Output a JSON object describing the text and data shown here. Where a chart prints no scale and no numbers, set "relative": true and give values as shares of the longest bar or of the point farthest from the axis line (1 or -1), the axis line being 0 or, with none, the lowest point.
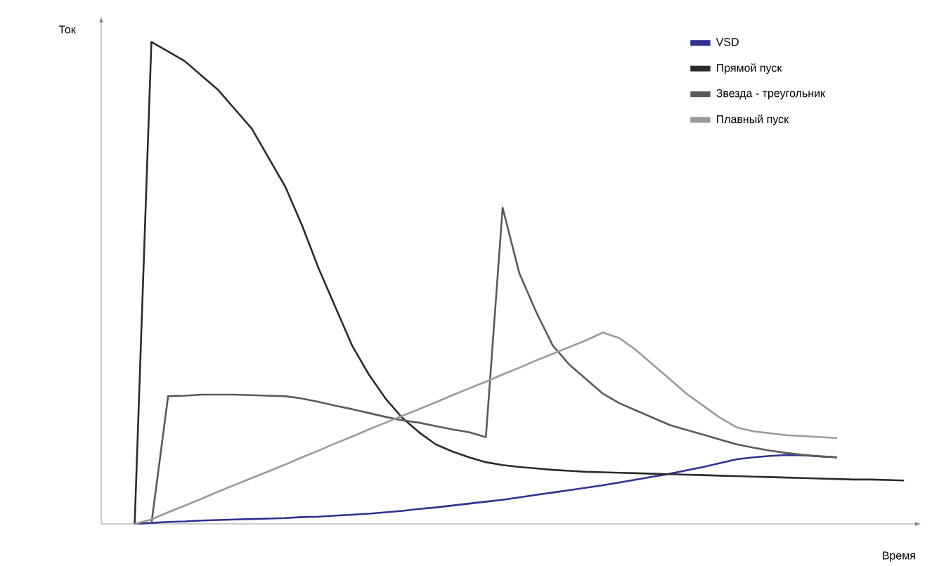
{
  "chart_data": {
    "type": "line",
    "relative": true,
    "xlabel": "Время",
    "ylabel": "Ток",
    "legend": "top right",
    "categories": [
      null,
      null,
      null,
      null,
      null,
      null,
      null,
      null,
      null,
      null,
      null,
      null,
      null,
      null,
      null,
      null,
      null,
      null,
      null,
      null,
      null,
      null,
      null,
      null,
      null,
      null,
      null,
      null,
      null,
      null,
      null,
      null,
      null,
      null,
      null,
      null,
      null,
      null,
      null,
      null,
      null,
      null,
      null,
      null,
      null,
      null,
      null,
      null,
      null,
      null
    ],
    "series": [
      {
        "name": "VSD",
        "color": "#2e3192",
        "values": [
          null,
          null,
          0,
          0.002,
          0.004,
          0.005,
          0.007,
          0.008,
          0.009,
          0.01,
          0.011,
          0.012,
          0.014,
          0.015,
          0.017,
          0.019,
          0.021,
          0.024,
          0.027,
          0.031,
          0.034,
          0.038,
          0.042,
          0.046,
          0.05,
          0.055,
          0.06,
          0.065,
          0.07,
          0.075,
          0.08,
          0.086,
          0.092,
          0.098,
          0.104,
          0.111,
          0.118,
          0.126,
          0.134,
          0.138,
          0.141,
          0.143,
          0.142,
          0.14,
          0.138,
          null,
          null,
          null,
          null,
          null
        ]
      },
      {
        "name": "Прямой пуск",
        "color": "#2b2b2b",
        "values": [
          null,
          null,
          0,
          1,
          0.98,
          0.96,
          0.93,
          0.9,
          0.86,
          0.82,
          0.76,
          0.7,
          0.62,
          0.53,
          0.45,
          0.37,
          0.31,
          0.26,
          0.22,
          0.19,
          0.165,
          0.15,
          0.138,
          0.128,
          0.122,
          0.118,
          0.115,
          0.112,
          0.11,
          0.108,
          0.107,
          0.106,
          0.105,
          0.104,
          0.103,
          0.102,
          0.101,
          0.1,
          0.099,
          0.098,
          0.097,
          0.096,
          0.095,
          0.094,
          0.093,
          0.092,
          0.092,
          0.091,
          0.09,
          null
        ]
      },
      {
        "name": "Звезда - треугольник",
        "color": "#5a5a5a",
        "values": [
          null,
          null,
          null,
          0,
          0.265,
          0.266,
          0.268,
          0.268,
          0.268,
          0.267,
          0.266,
          0.265,
          0.26,
          0.253,
          0.245,
          0.238,
          0.23,
          0.222,
          0.215,
          0.21,
          0.203,
          0.196,
          0.19,
          0.18,
          0.656,
          0.52,
          0.44,
          0.37,
          0.33,
          0.3,
          0.27,
          0.25,
          0.235,
          0.22,
          0.205,
          0.195,
          0.185,
          0.175,
          0.165,
          0.158,
          0.152,
          0.147,
          0.143,
          0.14,
          0.138,
          null,
          null,
          null,
          null,
          null
        ]
      },
      {
        "name": "Плавный пуск",
        "color": "#9a9a9a",
        "values": [
          null,
          null,
          0,
          0.009,
          0.024,
          0.038,
          0.052,
          0.067,
          0.081,
          0.095,
          0.109,
          0.123,
          0.138,
          0.152,
          0.167,
          0.181,
          0.196,
          0.21,
          0.224,
          0.238,
          0.252,
          0.267,
          0.281,
          0.295,
          0.31,
          0.324,
          0.339,
          0.353,
          0.367,
          0.381,
          0.397,
          0.385,
          0.36,
          0.33,
          0.3,
          0.27,
          0.245,
          0.22,
          0.2,
          0.192,
          0.188,
          0.184,
          0.182,
          0.18,
          0.178,
          null,
          null,
          null,
          null,
          null
        ]
      }
    ]
  }
}
